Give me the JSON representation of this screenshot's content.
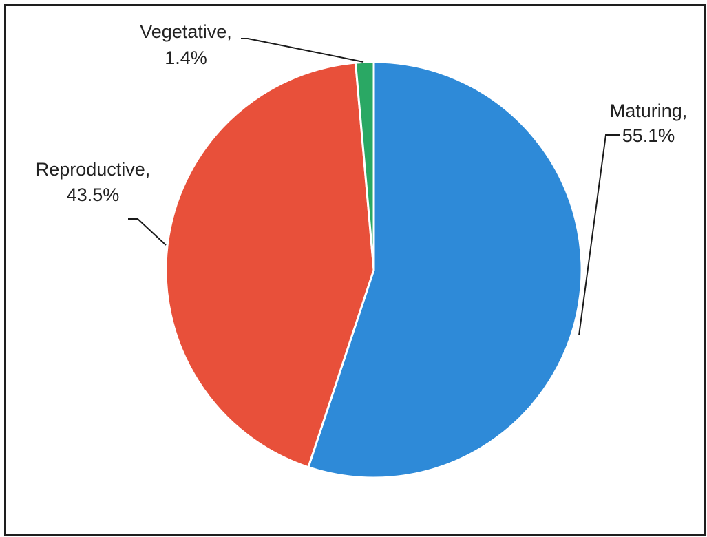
{
  "chart_data": {
    "type": "pie",
    "title": "",
    "slices": [
      {
        "label": "Maturing",
        "value": 55.1,
        "value_label": "55.1%",
        "color": "#2e8ad8"
      },
      {
        "label": "Reproductive",
        "value": 43.5,
        "value_label": "43.5%",
        "color": "#e8503a"
      },
      {
        "label": "Vegetative",
        "value": 1.4,
        "value_label": "1.4%",
        "color": "#2aa864"
      }
    ],
    "start_angle_deg": 0,
    "direction": "clockwise",
    "legend": "none",
    "data_labels": "outside with leader lines"
  }
}
